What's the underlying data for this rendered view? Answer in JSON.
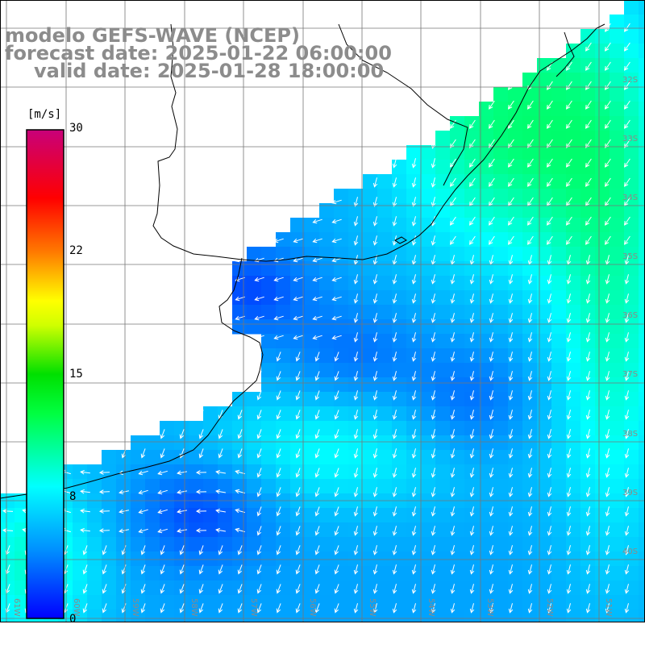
{
  "title": {
    "line1": "modelo GEFS-WAVE (NCEP)",
    "line2": "forecast date: 2025-01-22 06:00:00",
    "line3": "valid date: 2025-01-28 18:00:00"
  },
  "colorbar": {
    "unit": "[m/s]",
    "min": 0,
    "max": 30,
    "ticks": [
      {
        "label": "30",
        "value": 30
      },
      {
        "label": "22",
        "value": 22
      },
      {
        "label": "15",
        "value": 15
      },
      {
        "label": "8",
        "value": 8
      },
      {
        "label": "0",
        "value": 0
      }
    ],
    "colors": [
      "#0000ff",
      "#00c8ff",
      "#00ffff",
      "#00ff00",
      "#ffff00",
      "#ff8000",
      "#ff0000",
      "#c8006e"
    ]
  },
  "lat_labels": [
    "32S",
    "33S",
    "34S",
    "35S",
    "36S",
    "37S",
    "38S",
    "39S",
    "40S"
  ],
  "lon_labels": [
    "61W",
    "60W",
    "59W",
    "58W",
    "57W",
    "56W",
    "55W",
    "54W",
    "53W",
    "52W",
    "51W"
  ]
}
